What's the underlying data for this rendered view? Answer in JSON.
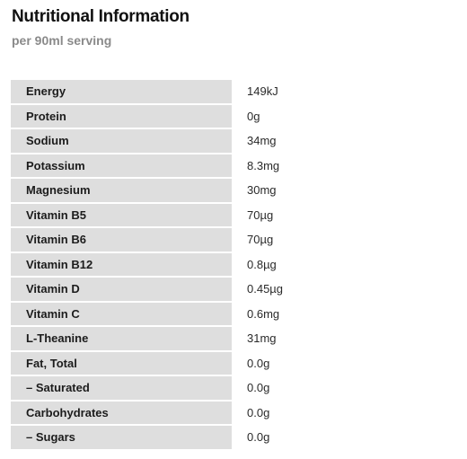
{
  "header": {
    "title": "Nutritional Information",
    "subtitle": "per 90ml serving"
  },
  "nutrition": {
    "rows": [
      {
        "label": "Energy",
        "value": "149kJ"
      },
      {
        "label": "Protein",
        "value": "0g"
      },
      {
        "label": "Sodium",
        "value": "34mg"
      },
      {
        "label": "Potassium",
        "value": "8.3mg"
      },
      {
        "label": "Magnesium",
        "value": "30mg"
      },
      {
        "label": "Vitamin B5",
        "value": "70µg"
      },
      {
        "label": "Vitamin B6",
        "value": "70µg"
      },
      {
        "label": "Vitamin B12",
        "value": "0.8µg"
      },
      {
        "label": "Vitamin D",
        "value": "0.45µg"
      },
      {
        "label": "Vitamin C",
        "value": "0.6mg"
      },
      {
        "label": "L-Theanine",
        "value": "31mg"
      },
      {
        "label": "Fat, Total",
        "value": "0.0g"
      },
      {
        "label": "– Saturated",
        "value": "0.0g"
      },
      {
        "label": "Carbohydrates",
        "value": "0.0g"
      },
      {
        "label": "– Sugars",
        "value": "0.0g"
      }
    ]
  },
  "colors": {
    "label_background": "#dedede",
    "subtitle": "#8a8a8a"
  }
}
